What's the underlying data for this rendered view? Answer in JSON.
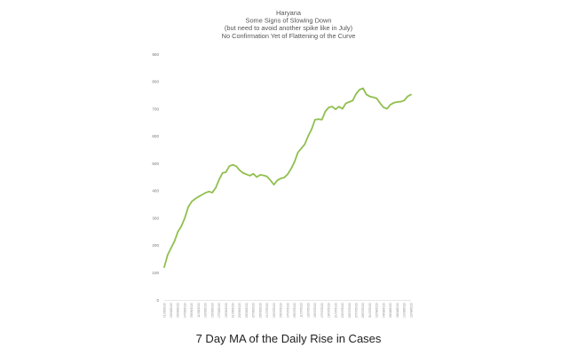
{
  "caption": "7 Day MA of the Daily Rise in Cases",
  "chart_data": {
    "type": "line",
    "title_lines": [
      "Haryana",
      "Some Signs of Slowing Down",
      "(but need to avoid another spike like in July)",
      "No Confirmation Yet of Flattening of the Curve"
    ],
    "xlabel": "",
    "ylabel": "",
    "ylim": [
      0,
      900
    ],
    "yticks": [
      0,
      100,
      200,
      300,
      400,
      500,
      600,
      700,
      800,
      900
    ],
    "grid": false,
    "line_color": "#8fbf4d",
    "series": [
      {
        "x": [
          "01/06/2020",
          "02/06/2020",
          "03/06/2020",
          "04/06/2020",
          "05/06/2020",
          "06/06/2020",
          "07/06/2020",
          "08/06/2020",
          "09/06/2020",
          "10/06/2020",
          "11/06/2020",
          "12/06/2020",
          "13/06/2020",
          "14/06/2020",
          "15/06/2020",
          "16/06/2020",
          "17/06/2020",
          "18/06/2020",
          "19/06/2020",
          "20/06/2020",
          "21/06/2020",
          "22/06/2020",
          "23/06/2020",
          "24/06/2020",
          "25/06/2020",
          "26/06/2020",
          "27/06/2020",
          "28/06/2020",
          "29/06/2020",
          "30/06/2020",
          "01/07/2020",
          "02/07/2020",
          "03/07/2020",
          "04/07/2020",
          "05/07/2020",
          "06/07/2020",
          "07/07/2020",
          "08/07/2020",
          "09/07/2020",
          "10/07/2020",
          "11/07/2020",
          "12/07/2020",
          "13/07/2020",
          "14/07/2020",
          "15/07/2020",
          "16/07/2020",
          "17/07/2020",
          "18/07/2020",
          "19/07/2020",
          "20/07/2020",
          "21/07/2020",
          "22/07/2020",
          "23/07/2020",
          "24/07/2020",
          "25/07/2020",
          "26/07/2020",
          "27/07/2020",
          "28/07/2020",
          "29/07/2020",
          "30/07/2020",
          "31/07/2020",
          "01/08/2020",
          "02/08/2020",
          "03/08/2020",
          "04/08/2020",
          "05/08/2020",
          "06/08/2020",
          "07/08/2020",
          "08/08/2020",
          "09/08/2020",
          "10/08/2020",
          "11/08/2020",
          "12/08/2020"
        ],
        "values": [
          120,
          165,
          190,
          215,
          250,
          270,
          300,
          340,
          360,
          370,
          378,
          385,
          392,
          397,
          393,
          410,
          440,
          465,
          468,
          490,
          495,
          490,
          475,
          465,
          460,
          455,
          462,
          450,
          458,
          456,
          452,
          438,
          422,
          438,
          445,
          448,
          460,
          480,
          505,
          540,
          555,
          570,
          600,
          625,
          660,
          662,
          660,
          690,
          705,
          708,
          698,
          708,
          700,
          720,
          725,
          730,
          755,
          770,
          775,
          752,
          745,
          742,
          738,
          720,
          705,
          700,
          715,
          722,
          725,
          726,
          730,
          745,
          752
        ]
      }
    ],
    "xtick_labels": [
      "01/06/2020",
      "03/06/2020",
      "05/06/2020",
      "07/06/2020",
      "09/06/2020",
      "11/06/2020",
      "13/06/2020",
      "15/06/2020",
      "17/06/2020",
      "19/06/2020",
      "21/06/2020",
      "23/06/2020",
      "25/06/2020",
      "27/06/2020",
      "29/06/2020",
      "01/07/2020",
      "03/07/2020",
      "05/07/2020",
      "07/07/2020",
      "09/07/2020",
      "11/07/2020",
      "13/07/2020",
      "15/07/2020",
      "17/07/2020",
      "19/07/2020",
      "21/07/2020",
      "23/07/2020",
      "25/07/2020",
      "27/07/2020",
      "29/07/2020",
      "31/07/2020",
      "02/08/2020",
      "04/08/2020",
      "06/08/2020",
      "08/08/2020",
      "10/08/2020",
      "12/08/2020"
    ]
  }
}
